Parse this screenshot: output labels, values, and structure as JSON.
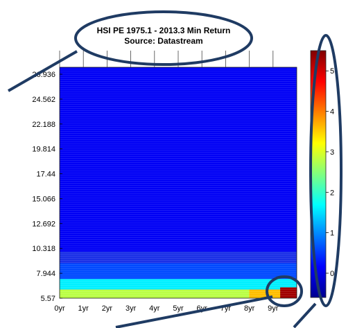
{
  "chart_data": {
    "type": "heatmap",
    "title": "HSI PE 1975.1 - 2013.3 Min Return",
    "subtitle": "Source: Datastream",
    "xlabel": "",
    "ylabel": "",
    "x_ticks": [
      "0yr",
      "1yr",
      "2yr",
      "3yr",
      "4yr",
      "5yr",
      "6yr",
      "7yr",
      "8yr",
      "9yr"
    ],
    "x_range": [
      0,
      10
    ],
    "y_ticks": [
      "5.57",
      "7.944",
      "10.318",
      "12.692",
      "15.066",
      "17.44",
      "19.814",
      "22.188",
      "24.562",
      "26.936"
    ],
    "y_range": [
      5.57,
      27.6
    ],
    "colorbar": {
      "ticks": [
        "0",
        "1",
        "2",
        "3",
        "4",
        "5"
      ],
      "range": [
        -0.6,
        5.5
      ],
      "colormap": "jet"
    },
    "summary_regions": [
      {
        "x": [
          0,
          10
        ],
        "y": [
          10.0,
          27.6
        ],
        "value": 0.1
      },
      {
        "x": [
          0,
          10
        ],
        "y": [
          7.4,
          8.9
        ],
        "value": 0.6
      },
      {
        "x": [
          0,
          10
        ],
        "y": [
          6.4,
          7.4
        ],
        "value": 1.6
      },
      {
        "x": [
          0,
          10
        ],
        "y": [
          5.57,
          6.4
        ],
        "value": 2.8
      },
      {
        "x": [
          8.0,
          9.3
        ],
        "y": [
          5.57,
          6.4
        ],
        "value": 3.6
      },
      {
        "x": [
          9.3,
          10
        ],
        "y": [
          5.57,
          6.6
        ],
        "value": 5.3
      }
    ]
  },
  "colors": {
    "annotation_outline": "#1f3b63",
    "grid_bg": "#1a2fe6"
  }
}
